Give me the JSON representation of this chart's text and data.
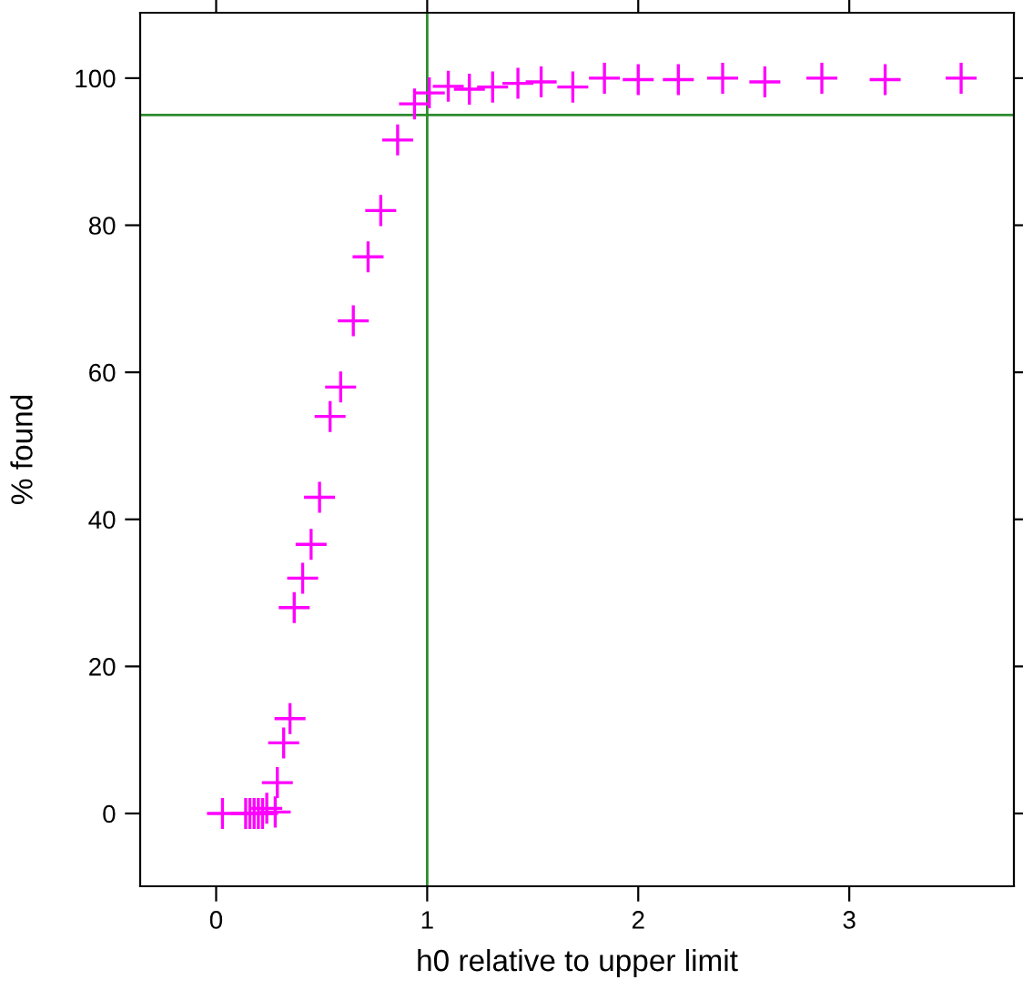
{
  "chart_data": {
    "type": "scatter",
    "xlabel": "h0 relative to upper limit",
    "ylabel": "% found",
    "x": [
      0.03,
      0.14,
      0.16,
      0.18,
      0.2,
      0.22,
      0.24,
      0.28,
      0.29,
      0.32,
      0.35,
      0.37,
      0.41,
      0.45,
      0.49,
      0.54,
      0.59,
      0.65,
      0.72,
      0.78,
      0.86,
      0.94,
      1.01,
      1.1,
      1.2,
      1.31,
      1.43,
      1.54,
      1.69,
      1.84,
      2.0,
      2.19,
      2.4,
      2.6,
      2.87,
      3.17,
      3.53
    ],
    "series": [
      {
        "color": "#ff00ff",
        "values": [
          0,
          0,
          0,
          0,
          0,
          0,
          0.7,
          0.2,
          4.2,
          9.6,
          12.9,
          28,
          32,
          36.6,
          43,
          54,
          58,
          67,
          75.7,
          82,
          91.6,
          96.5,
          98,
          98.9,
          98.5,
          98.8,
          99.3,
          99.5,
          98.8,
          100,
          99.8,
          99.8,
          100,
          99.5,
          100,
          99.8,
          100
        ]
      }
    ],
    "marker": "cross",
    "grid": false,
    "xlim": [
      -0.36,
      3.78
    ],
    "ylim": [
      -9.9,
      108.9
    ],
    "xticks": [
      0,
      1,
      2,
      3
    ],
    "yticks": [
      0,
      20,
      40,
      60,
      80,
      100
    ],
    "ref_lines": [
      {
        "axis": "y",
        "value": 95,
        "color": "#2e8b2e"
      },
      {
        "axis": "x",
        "value": 1,
        "color": "#2e8b2e"
      }
    ]
  }
}
